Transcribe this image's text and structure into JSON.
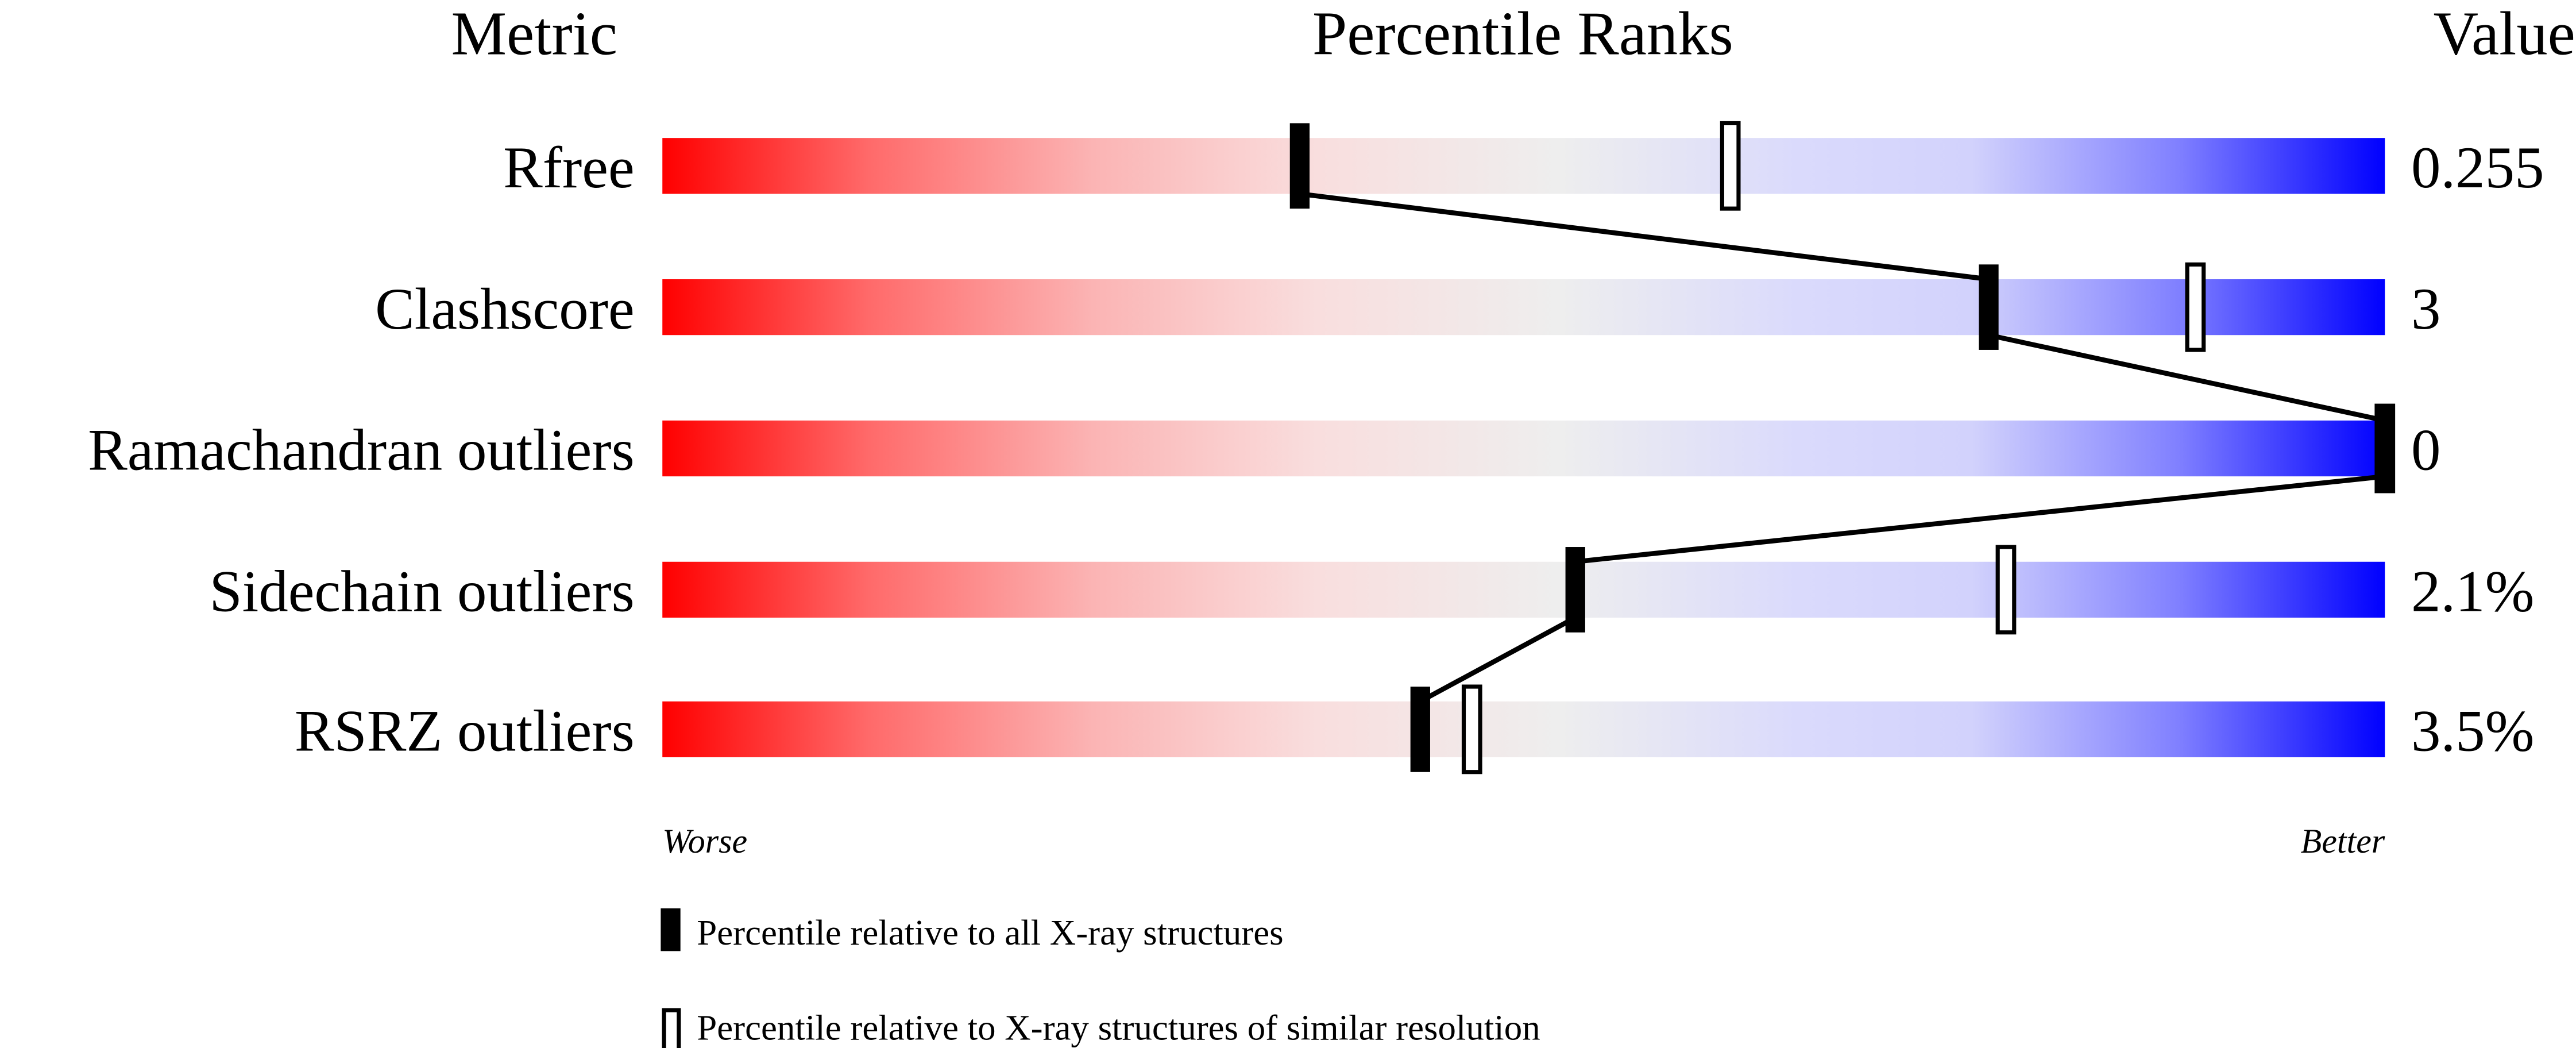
{
  "chart_data": {
    "type": "percentile-bar",
    "headers": {
      "metric": "Metric",
      "ranks": "Percentile Ranks",
      "value": "Value"
    },
    "axis_range": [
      0,
      100
    ],
    "rows": [
      {
        "metric": "Rfree",
        "value": "0.255",
        "percentile_all": 37,
        "percentile_similar": 62
      },
      {
        "metric": "Clashscore",
        "value": "3",
        "percentile_all": 77,
        "percentile_similar": 89
      },
      {
        "metric": "Ramachandran outliers",
        "value": "0",
        "percentile_all": 100,
        "percentile_similar": 100
      },
      {
        "metric": "Sidechain outliers",
        "value": "2.1%",
        "percentile_all": 53,
        "percentile_similar": 78
      },
      {
        "metric": "RSRZ outliers",
        "value": "3.5%",
        "percentile_all": 44,
        "percentile_similar": 47
      }
    ],
    "scale_labels": {
      "worse": "Worse",
      "better": "Better"
    },
    "legend": {
      "all": "Percentile relative to all X-ray structures",
      "similar": "Percentile relative to X-ray structures of similar resolution"
    },
    "colors": {
      "worse": "#ff0000",
      "middle": "#eeeeee",
      "better": "#0000ff",
      "marker": "#000000"
    }
  }
}
